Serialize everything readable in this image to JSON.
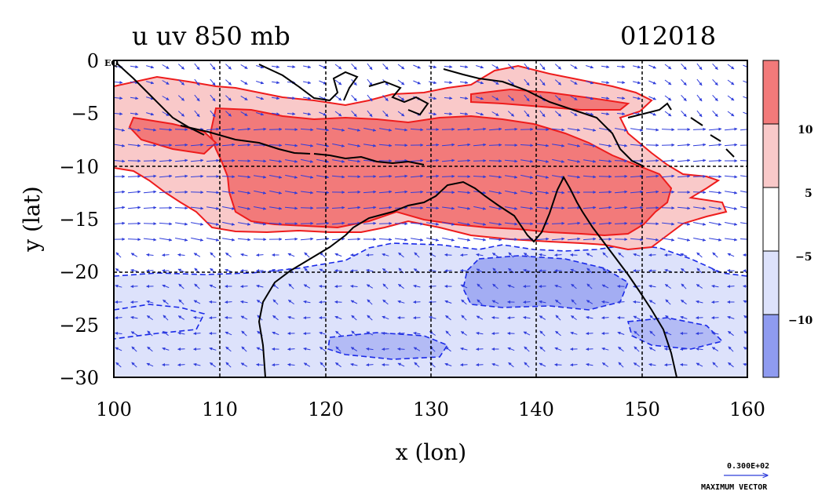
{
  "header": {
    "title": "u uv 850 mb",
    "date": "012018"
  },
  "axes": {
    "xlabel": "x (lon)",
    "ylabel": "y (lat)",
    "x_ticks": [
      "100",
      "110",
      "120",
      "130",
      "140",
      "150",
      "160"
    ],
    "y_ticks": [
      "0",
      "−5",
      "−10",
      "−15",
      "−20",
      "−25",
      "−30"
    ],
    "eq_label": "EQ",
    "xlim": [
      100,
      160
    ],
    "ylim": [
      -30,
      0
    ],
    "grid": "dashed every 10 degrees"
  },
  "colorbar": {
    "labels": [
      "10",
      "5",
      "−5",
      "−10"
    ],
    "colors": [
      "#f27a7a",
      "#f9c9c9",
      "#ffffff",
      "#dde2fb",
      "#8f9bf0"
    ]
  },
  "legend_vector": {
    "value": "0.300E+02",
    "caption": "MAXIMUM VECTOR"
  },
  "colors": {
    "strong_westerly": "#f27a7a",
    "westerly": "#f9c9c9",
    "easterly": "#dde2fb",
    "strong_easterly": "#8f9bf0",
    "contour_positive": "#ee1c1c",
    "contour_negative": "#1a2ae8",
    "vectors": "#2f3ddb",
    "coastline": "#000000"
  }
}
